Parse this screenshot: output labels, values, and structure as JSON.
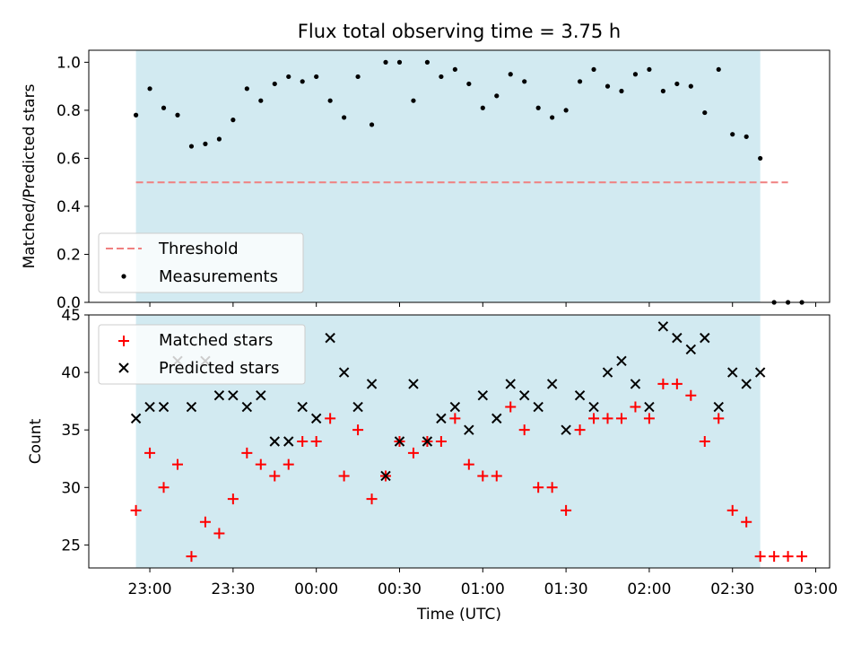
{
  "figure_title": "Flux total observing time = 3.75 h",
  "colors": {
    "shade": "#add8e6",
    "threshold": "#f08080",
    "matched": "#ff0000",
    "predicted": "#000000",
    "measurement": "#000000"
  },
  "chart_data": [
    {
      "type": "scatter",
      "ylabel": "Matched/Predicted stars",
      "ylim": [
        0.0,
        1.05
      ],
      "yticks": [
        "0.0",
        "0.2",
        "0.4",
        "0.6",
        "0.8",
        "1.0"
      ],
      "observing_window": [
        "22:55",
        "02:40"
      ],
      "threshold": {
        "value": 0.5,
        "x_range": [
          "22:55",
          "02:50"
        ]
      },
      "legend": {
        "position": "lower-left",
        "entries": [
          "Threshold",
          "Measurements"
        ]
      },
      "series": [
        {
          "name": "Measurements",
          "x": [
            "22:55",
            "23:00",
            "23:05",
            "23:10",
            "23:15",
            "23:20",
            "23:25",
            "23:30",
            "23:35",
            "23:40",
            "23:45",
            "23:50",
            "23:55",
            "00:00",
            "00:05",
            "00:10",
            "00:15",
            "00:20",
            "00:25",
            "00:30",
            "00:35",
            "00:40",
            "00:45",
            "00:50",
            "00:55",
            "01:00",
            "01:05",
            "01:10",
            "01:15",
            "01:20",
            "01:25",
            "01:30",
            "01:35",
            "01:40",
            "01:45",
            "01:50",
            "01:55",
            "02:00",
            "02:05",
            "02:10",
            "02:15",
            "02:20",
            "02:25",
            "02:30",
            "02:35",
            "02:40",
            "02:45",
            "02:50",
            "02:55"
          ],
          "y": [
            0.78,
            0.89,
            0.81,
            0.78,
            0.65,
            0.66,
            0.68,
            0.76,
            0.89,
            0.84,
            0.91,
            0.94,
            0.92,
            0.94,
            0.84,
            0.77,
            0.94,
            0.74,
            1.0,
            1.0,
            0.84,
            1.0,
            0.94,
            0.97,
            0.91,
            0.81,
            0.86,
            0.95,
            0.92,
            0.81,
            0.77,
            0.8,
            0.92,
            0.97,
            0.9,
            0.88,
            0.95,
            0.97,
            0.88,
            0.91,
            0.9,
            0.79,
            0.97,
            0.7,
            0.69,
            0.6,
            0.0,
            0.0,
            0.0
          ]
        }
      ]
    },
    {
      "type": "scatter",
      "xlabel": "Time (UTC)",
      "ylabel": "Count",
      "ylim": [
        23,
        45
      ],
      "yticks": [
        "25",
        "30",
        "35",
        "40",
        "45"
      ],
      "xticks": [
        "23:00",
        "23:30",
        "00:00",
        "00:30",
        "01:00",
        "01:30",
        "02:00",
        "02:30",
        "03:00"
      ],
      "observing_window": [
        "22:55",
        "02:40"
      ],
      "legend": {
        "position": "top-left",
        "entries": [
          "Matched stars",
          "Predicted stars"
        ]
      },
      "series": [
        {
          "name": "Matched stars",
          "x": [
            "22:55",
            "23:00",
            "23:05",
            "23:10",
            "23:15",
            "23:20",
            "23:25",
            "23:30",
            "23:35",
            "23:40",
            "23:45",
            "23:50",
            "23:55",
            "00:00",
            "00:05",
            "00:10",
            "00:15",
            "00:20",
            "00:25",
            "00:30",
            "00:35",
            "00:40",
            "00:45",
            "00:50",
            "00:55",
            "01:00",
            "01:05",
            "01:10",
            "01:15",
            "01:20",
            "01:25",
            "01:30",
            "01:35",
            "01:40",
            "01:45",
            "01:50",
            "01:55",
            "02:00",
            "02:05",
            "02:10",
            "02:15",
            "02:20",
            "02:25",
            "02:30",
            "02:35",
            "02:40",
            "02:45",
            "02:50",
            "02:55"
          ],
          "y": [
            28,
            33,
            30,
            32,
            24,
            27,
            26,
            29,
            33,
            32,
            31,
            32,
            34,
            34,
            36,
            31,
            35,
            29,
            31,
            34,
            33,
            34,
            34,
            36,
            32,
            31,
            31,
            37,
            35,
            30,
            30,
            28,
            35,
            36,
            36,
            36,
            37,
            36,
            39,
            39,
            38,
            34,
            36,
            28,
            27,
            24,
            24,
            24,
            24
          ]
        },
        {
          "name": "Predicted stars",
          "x": [
            "22:55",
            "23:00",
            "23:05",
            "23:10",
            "23:15",
            "23:20",
            "23:25",
            "23:30",
            "23:35",
            "23:40",
            "23:45",
            "23:50",
            "23:55",
            "00:00",
            "00:05",
            "00:10",
            "00:15",
            "00:20",
            "00:25",
            "00:30",
            "00:35",
            "00:40",
            "00:45",
            "00:50",
            "00:55",
            "01:00",
            "01:05",
            "01:10",
            "01:15",
            "01:20",
            "01:25",
            "01:30",
            "01:35",
            "01:40",
            "01:45",
            "01:50",
            "01:55",
            "02:00",
            "02:05",
            "02:10",
            "02:15",
            "02:20",
            "02:25",
            "02:30",
            "02:35",
            "02:40"
          ],
          "y": [
            36,
            37,
            37,
            41,
            37,
            41,
            38,
            38,
            37,
            38,
            34,
            34,
            37,
            36,
            43,
            40,
            37,
            39,
            31,
            34,
            39,
            34,
            36,
            37,
            35,
            38,
            36,
            39,
            38,
            37,
            39,
            35,
            38,
            37,
            40,
            41,
            39,
            37,
            44,
            43,
            42,
            43,
            37,
            40,
            39,
            40
          ]
        }
      ]
    }
  ]
}
